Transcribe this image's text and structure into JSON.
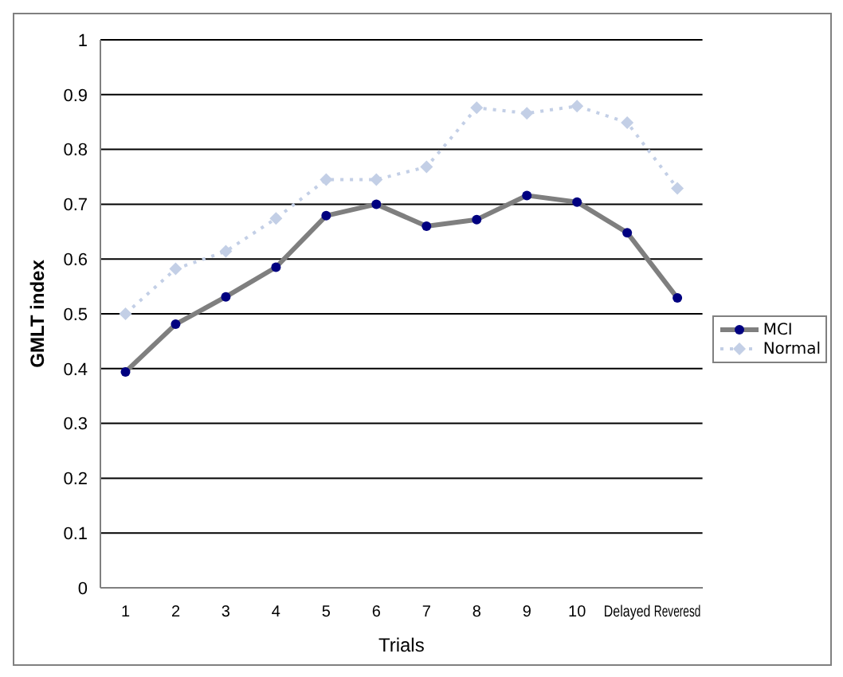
{
  "chart_data": {
    "type": "line",
    "xlabel": "Trials",
    "ylabel": "GMLT index",
    "categories": [
      "1",
      "2",
      "3",
      "4",
      "5",
      "6",
      "7",
      "8",
      "9",
      "10",
      "Delayed",
      "Reveresd"
    ],
    "series": [
      {
        "name": "MCI",
        "color": "#7f7f7f",
        "marker": "circle",
        "line_style": "solid",
        "values": [
          0.394,
          0.481,
          0.531,
          0.585,
          0.679,
          0.7,
          0.66,
          0.672,
          0.716,
          0.704,
          0.648,
          0.529
        ]
      },
      {
        "name": "Normal",
        "color": "#c3cfe6",
        "marker": "diamond",
        "line_style": "dotted",
        "values": [
          0.5,
          0.582,
          0.614,
          0.674,
          0.745,
          0.745,
          0.768,
          0.876,
          0.866,
          0.879,
          0.849,
          0.729
        ]
      }
    ],
    "ylim": [
      0,
      1
    ],
    "yticks": [
      0,
      0.1,
      0.2,
      0.3,
      0.4,
      0.5,
      0.6,
      0.7,
      0.8,
      0.9,
      1
    ],
    "grid": "y",
    "legend": "right"
  }
}
